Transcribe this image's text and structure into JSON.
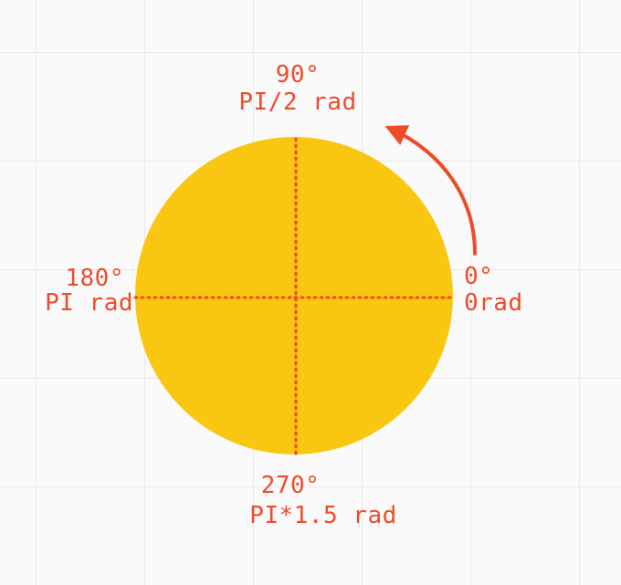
{
  "colors": {
    "circle_fill": "#F9C712",
    "accent": "#EE4B2B",
    "grid": "#E9E9E9",
    "background": "#FAFAFA"
  },
  "labels": {
    "top": {
      "degrees": "90°",
      "radians": "PI/2 rad"
    },
    "left": {
      "degrees": "180°",
      "radians": "PI rad"
    },
    "right": {
      "degrees": "0°",
      "radians": "0rad"
    },
    "bottom": {
      "degrees": "270°",
      "radians": "PI*1.5 rad"
    }
  },
  "arrow": {
    "direction": "counter-clockwise"
  }
}
